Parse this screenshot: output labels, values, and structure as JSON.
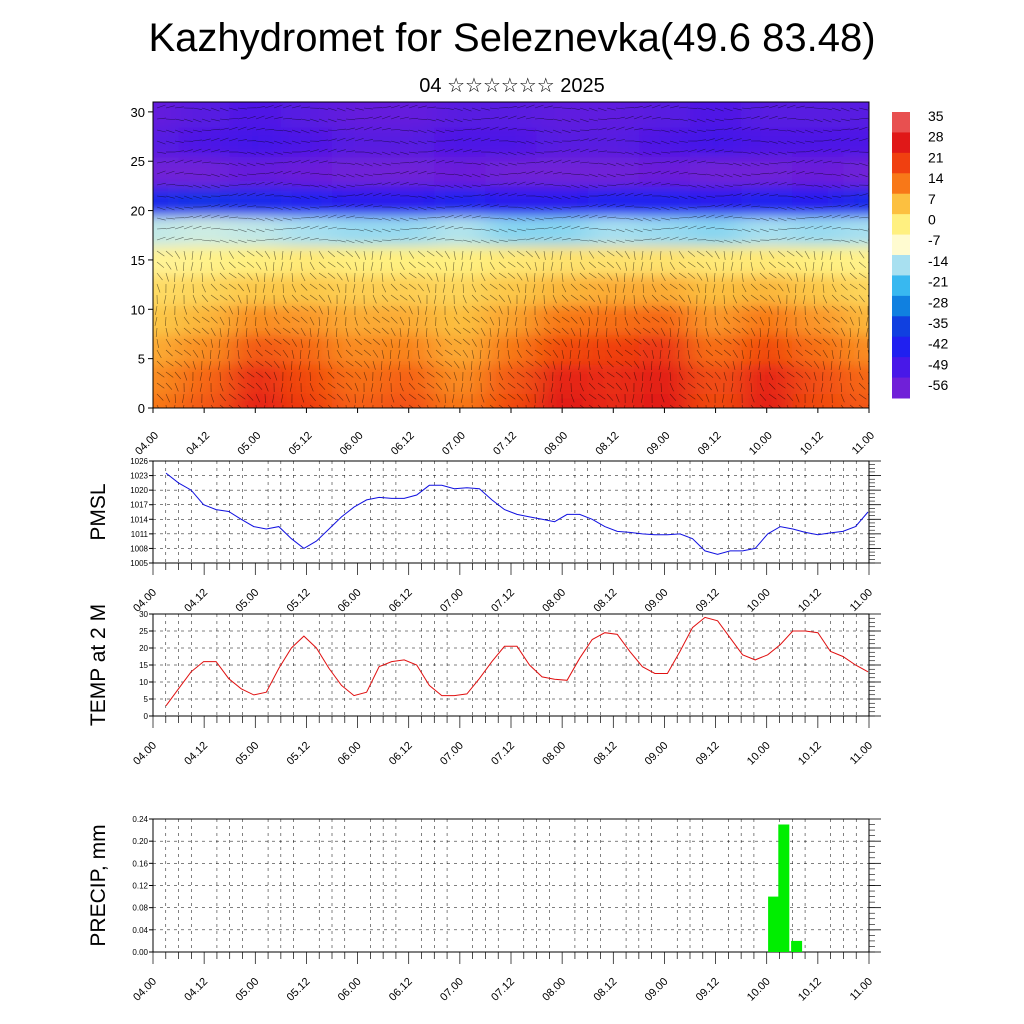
{
  "title": "Kazhydromet for Seleznevka(49.6 83.48)",
  "subtitle": "04 ☆☆☆☆☆☆ 2025",
  "time_labels": [
    "04.00",
    "04.12",
    "05.00",
    "05.12",
    "06.00",
    "06.12",
    "07.00",
    "07.12",
    "08.00",
    "08.12",
    "09.00",
    "09.12",
    "10.00",
    "10.12",
    "11.00"
  ],
  "colors": {
    "pmsl": "#1010e0",
    "temp": "#e01010",
    "precip": "#00ee00"
  },
  "chart_data": [
    {
      "type": "heatmap",
      "title": "",
      "xlabel": "",
      "ylabel": "",
      "ylim": [
        0,
        31
      ],
      "yticks": [
        0,
        5,
        10,
        15,
        20,
        25,
        30
      ],
      "colorbar": {
        "labels": [
          "35",
          "28",
          "21",
          "14",
          "7",
          "0",
          "-7",
          "-14",
          "-21",
          "-28",
          "-35",
          "-42",
          "-49",
          "-56"
        ],
        "colors": [
          "#e85050",
          "#e01818",
          "#f04010",
          "#f87818",
          "#fcc040",
          "#fff080",
          "#fffbd0",
          "#a8e0f0",
          "#38b8f0",
          "#1080e0",
          "#1040e0",
          "#2020f0",
          "#4818e8",
          "#7020d8"
        ]
      },
      "x": [
        0,
        1,
        2,
        3,
        4,
        5,
        6,
        7,
        8,
        9,
        10,
        11,
        12,
        13,
        14
      ],
      "levels": [
        0,
        3,
        6,
        9,
        12,
        15,
        18,
        21,
        24,
        27,
        30
      ],
      "temperature": [
        [
          14,
          18,
          26,
          22,
          17,
          19,
          14,
          20,
          28,
          25,
          28,
          20,
          27,
          20,
          18
        ],
        [
          12,
          16,
          24,
          20,
          15,
          17,
          12,
          18,
          26,
          24,
          27,
          19,
          26,
          19,
          16
        ],
        [
          9,
          12,
          18,
          16,
          12,
          13,
          9,
          14,
          20,
          21,
          23,
          15,
          20,
          15,
          12
        ],
        [
          6,
          8,
          12,
          11,
          9,
          9,
          7,
          10,
          14,
          15,
          16,
          11,
          14,
          11,
          8
        ],
        [
          3,
          4,
          6,
          6,
          5,
          5,
          4,
          6,
          8,
          9,
          9,
          7,
          8,
          6,
          4
        ],
        [
          -2,
          -1,
          0,
          1,
          0,
          0,
          0,
          1,
          2,
          2,
          2,
          1,
          1,
          0,
          -1
        ],
        [
          -12,
          -11,
          -12,
          -14,
          -15,
          -15,
          -13,
          -16,
          -16,
          -14,
          -15,
          -16,
          -14,
          -15,
          -14
        ],
        [
          -40,
          -38,
          -40,
          -42,
          -44,
          -44,
          -42,
          -44,
          -44,
          -42,
          -42,
          -44,
          -42,
          -43,
          -40
        ],
        [
          -58,
          -56,
          -54,
          -55,
          -56,
          -56,
          -55,
          -56,
          -56,
          -56,
          -55,
          -56,
          -56,
          -55,
          -56
        ],
        [
          -52,
          -50,
          -48,
          -50,
          -52,
          -52,
          -50,
          -50,
          -52,
          -52,
          -50,
          -48,
          -50,
          -50,
          -50
        ],
        [
          -54,
          -52,
          -50,
          -52,
          -54,
          -54,
          -52,
          -52,
          -53,
          -53,
          -52,
          -50,
          -52,
          -52,
          -52
        ]
      ]
    },
    {
      "type": "line",
      "ylabel": "PMSL",
      "ylim": [
        1005,
        1026
      ],
      "yticks": [
        1005,
        1008,
        1011,
        1014,
        1017,
        1020,
        1023,
        1026
      ],
      "series": [
        {
          "values": [
            1023.5,
            1021.5,
            1020,
            1017,
            1016,
            1015.6,
            1014,
            1012.5,
            1012,
            1012.5,
            1010,
            1008,
            1009.5,
            1012,
            1014.5,
            1016.5,
            1018,
            1018.5,
            1018.3,
            1018.3,
            1019,
            1021,
            1021,
            1020.3,
            1020.5,
            1020.3,
            1018,
            1016,
            1015,
            1014.5,
            1014,
            1013.5,
            1015,
            1015,
            1014,
            1012.5,
            1011.5,
            1011.3,
            1011,
            1010.8,
            1010.8,
            1011,
            1010,
            1007.5,
            1006.8,
            1007.5,
            1007.5,
            1008,
            1011,
            1012.5,
            1012,
            1011.3,
            1010.8,
            1011.2,
            1011.5,
            1012.5,
            1015.5
          ]
        }
      ]
    },
    {
      "type": "line",
      "ylabel": "TEMP at 2 M",
      "ylim": [
        0,
        30
      ],
      "yticks": [
        0,
        5,
        10,
        15,
        20,
        25,
        30
      ],
      "series": [
        {
          "values": [
            3,
            8,
            13,
            16,
            16,
            11,
            8,
            6.2,
            7,
            14,
            20,
            23.5,
            20,
            14,
            9,
            6,
            7,
            14.5,
            16,
            16.5,
            15,
            9,
            6,
            6,
            6.5,
            11,
            16,
            20.5,
            20.5,
            15,
            11.5,
            10.8,
            10.5,
            17,
            22.5,
            24.5,
            24,
            19,
            14.5,
            12.5,
            12.5,
            19,
            26,
            29,
            28,
            23,
            18,
            16.5,
            18,
            21,
            25,
            25,
            24.5,
            19,
            17.5,
            15,
            13
          ]
        }
      ]
    },
    {
      "type": "bar",
      "ylabel": "PRECIP, mm",
      "ylim": [
        0,
        0.24
      ],
      "yticks": [
        "0.00",
        "0.04",
        "0.08",
        "0.12",
        "0.16",
        "0.20",
        "0.24"
      ],
      "x": [
        11.9,
        12.1,
        12.35
      ],
      "values": [
        0.1,
        0.23,
        0.02
      ]
    }
  ]
}
